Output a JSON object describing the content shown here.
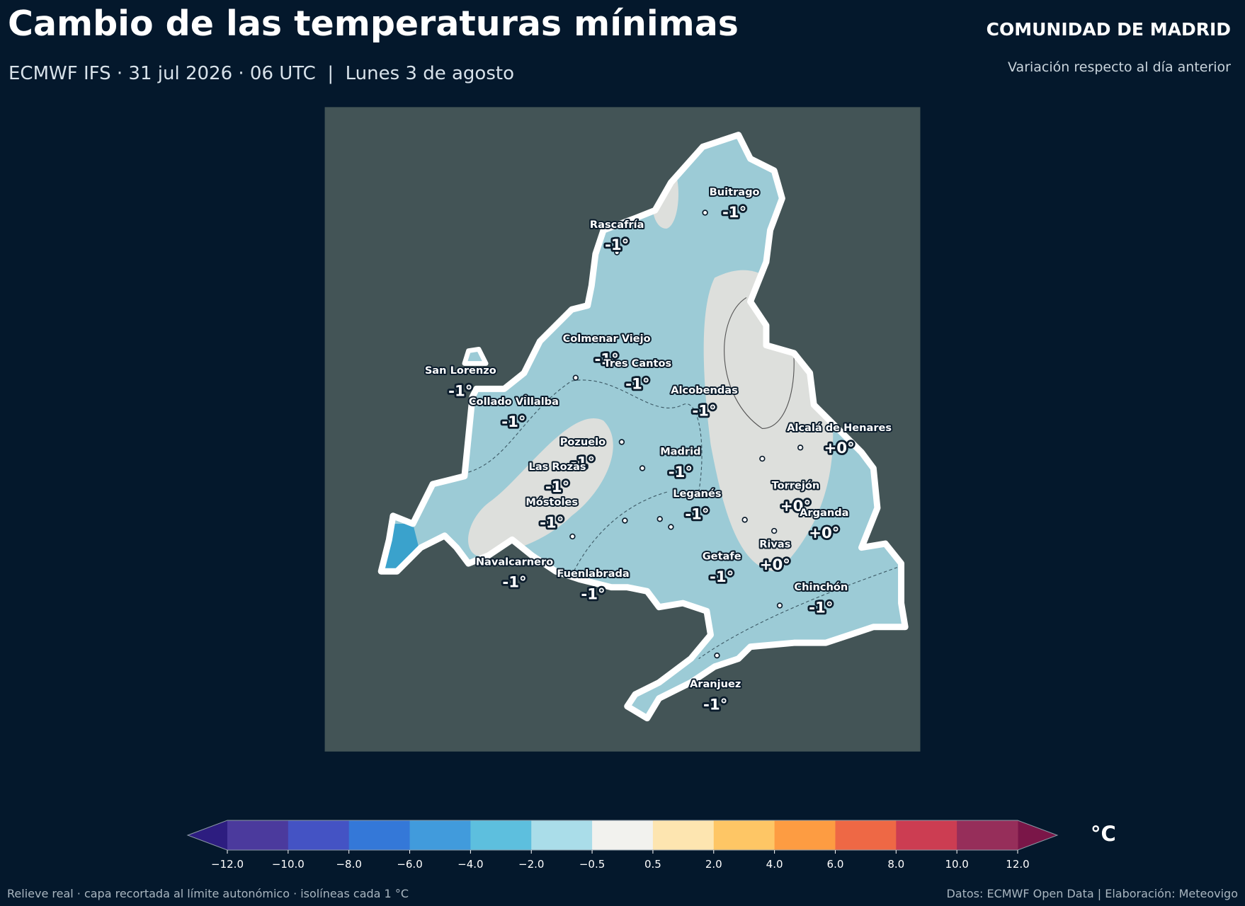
{
  "header": {
    "title": "Cambio de las temperaturas mínimas",
    "subtitle": "ECMWF IFS · 31 jul 2026 · 06 UTC  |  Lunes 3 de agosto",
    "region": "COMUNIDAD DE MADRID",
    "region_note": "Variación respecto al día anterior"
  },
  "map": {
    "cities": [
      {
        "name": "Buitrago",
        "label": "-1°"
      },
      {
        "name": "Rascafría",
        "label": "-1°"
      },
      {
        "name": "Colmenar Viejo",
        "label": "-1°"
      },
      {
        "name": "Tres Cantos",
        "label": "-1°"
      },
      {
        "name": "San Lorenzo",
        "label": "-1°"
      },
      {
        "name": "Collado Villalba",
        "label": "-1°"
      },
      {
        "name": "Alcobendas",
        "label": "-1°"
      },
      {
        "name": "Alcalá de Henares",
        "label": "+0°"
      },
      {
        "name": "Pozuelo",
        "label": "-1°"
      },
      {
        "name": "Madrid",
        "label": "-1°"
      },
      {
        "name": "Las Rozas",
        "label": "-1°"
      },
      {
        "name": "Torrejón",
        "label": "+0°"
      },
      {
        "name": "Leganés",
        "label": "-1°"
      },
      {
        "name": "Móstoles",
        "label": "-1°"
      },
      {
        "name": "Arganda",
        "label": "+0°"
      },
      {
        "name": "Rivas",
        "label": "+0°"
      },
      {
        "name": "Getafe",
        "label": "-1°"
      },
      {
        "name": "Navalcarnero",
        "label": "-1°"
      },
      {
        "name": "Fuenlabrada",
        "label": "-1°"
      },
      {
        "name": "Chinchón",
        "label": "-1°"
      },
      {
        "name": "Aranjuez",
        "label": "-1°"
      }
    ]
  },
  "colorbar": {
    "ticks": [
      "−12.0",
      "−10.0",
      "−8.0",
      "−6.0",
      "−4.0",
      "−2.0",
      "−0.5",
      "0.5",
      "2.0",
      "4.0",
      "6.0",
      "8.0",
      "10.0",
      "12.0"
    ],
    "colors": [
      "#4b3a9d",
      "#4453c4",
      "#3478d8",
      "#419bdc",
      "#5dbfde",
      "#aadde9",
      "#f2f2ee",
      "#fde5b0",
      "#fec665",
      "#fd9c42",
      "#ee6845",
      "#cc3d52",
      "#962e5a"
    ],
    "under_color": "#2d1d80",
    "over_color": "#7a1648",
    "unit": "°C"
  },
  "footer": {
    "left": "Relieve real · capa recortada al límite autonómico · isolíneas cada 1 °C",
    "right": "Datos: ECMWF Open Data | Elaboración: Meteovigo"
  }
}
